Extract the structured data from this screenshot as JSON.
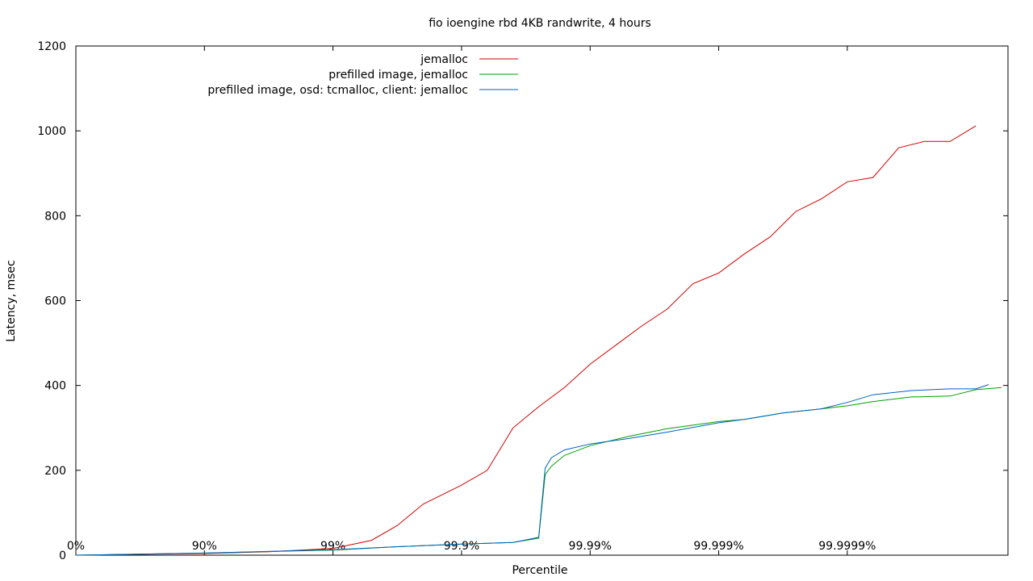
{
  "chart_data": {
    "type": "line",
    "title": "fio ioengine rbd 4KB randwrite, 4 hours",
    "xlabel": "Percentile",
    "ylabel": "Latency, msec",
    "x_scale": "log-nines",
    "x_ticks": [
      "0%",
      "90%",
      "99%",
      "99.9%",
      "99.99%",
      "99.999%",
      "99.9999%"
    ],
    "x_tick_nines": [
      0,
      1,
      2,
      3,
      4,
      5,
      6
    ],
    "xlim_nines": [
      0,
      7.25
    ],
    "ylim": [
      0,
      1200
    ],
    "y_ticks": [
      0,
      200,
      400,
      600,
      800,
      1000,
      1200
    ],
    "grid": false,
    "legend_position": "top-right",
    "series": [
      {
        "name": "jemalloc",
        "color": "#d40000",
        "x_nines": [
          0,
          0.5,
          1,
          1.5,
          2,
          2.3,
          2.5,
          2.7,
          3,
          3.2,
          3.4,
          3.6,
          3.8,
          4,
          4.2,
          4.4,
          4.6,
          4.8,
          5,
          5.2,
          5.4,
          5.6,
          5.8,
          6,
          6.2,
          6.4,
          6.6,
          6.8,
          7.0
        ],
        "values": [
          0,
          2,
          4,
          8,
          16,
          35,
          70,
          120,
          165,
          200,
          300,
          350,
          395,
          450,
          495,
          540,
          580,
          640,
          665,
          710,
          750,
          810,
          840,
          880,
          890,
          960,
          975,
          975,
          1012
        ]
      },
      {
        "name": "prefilled image, jemalloc",
        "color": "#00a000",
        "x_nines": [
          0,
          1,
          2,
          2.5,
          2.9,
          3,
          3.4,
          3.6,
          3.65,
          3.7,
          3.8,
          4,
          4.3,
          4.6,
          5,
          5.2,
          5.5,
          5.8,
          6,
          6.2,
          6.5,
          6.8,
          7.0,
          7.2
        ],
        "values": [
          0,
          5,
          12,
          20,
          25,
          26,
          30,
          40,
          190,
          210,
          235,
          258,
          280,
          298,
          315,
          320,
          335,
          345,
          352,
          362,
          373,
          375,
          390,
          395
        ]
      },
      {
        "name": "prefilled image, osd: tcmalloc, client: jemalloc",
        "color": "#0060c0",
        "x_nines": [
          0,
          1,
          2,
          2.5,
          2.9,
          3,
          3.4,
          3.6,
          3.65,
          3.7,
          3.8,
          4,
          4.3,
          4.6,
          5,
          5.2,
          5.5,
          5.8,
          6,
          6.2,
          6.5,
          6.8,
          7.0,
          7.1
        ],
        "values": [
          0,
          5,
          13,
          20,
          25,
          26,
          30,
          42,
          205,
          230,
          248,
          262,
          275,
          290,
          312,
          320,
          335,
          345,
          360,
          378,
          388,
          392,
          392,
          402
        ]
      }
    ]
  }
}
